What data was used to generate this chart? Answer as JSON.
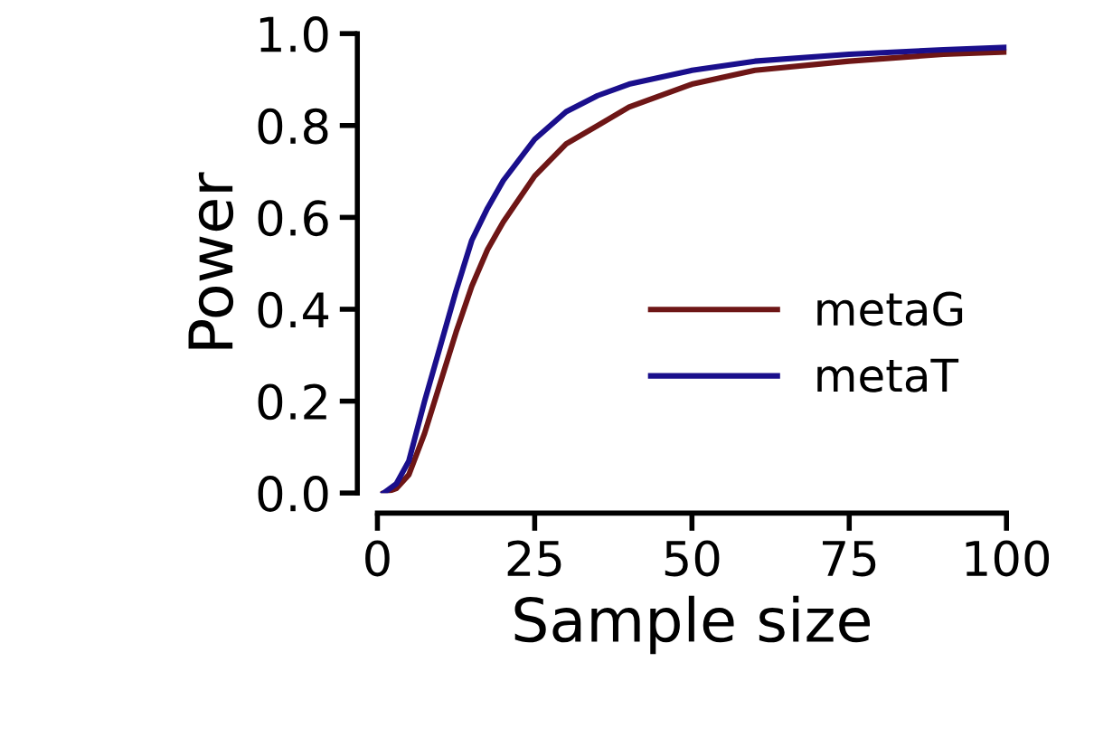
{
  "chart_data": {
    "type": "line",
    "xlabel": "Sample size",
    "ylabel": "Power",
    "xlim": [
      0,
      100
    ],
    "ylim": [
      0,
      1
    ],
    "xticks": [
      0,
      25,
      50,
      75,
      100
    ],
    "yticks": [
      {
        "value": 0,
        "label": "0.0"
      },
      {
        "value": 0.2,
        "label": "0.2"
      },
      {
        "value": 0.4,
        "label": "0.4"
      },
      {
        "value": 0.6,
        "label": "0.6"
      },
      {
        "value": 0.8,
        "label": "0.8"
      },
      {
        "value": 1,
        "label": "1.0"
      }
    ],
    "legend": "right",
    "grid": false,
    "x": [
      1,
      3,
      5,
      7.5,
      10,
      12.5,
      15,
      17.5,
      20,
      25,
      30,
      35,
      40,
      50,
      60,
      75,
      90,
      100
    ],
    "series": [
      {
        "name": "metaG",
        "color": "#6e1616",
        "values": [
          0.0,
          0.01,
          0.04,
          0.13,
          0.24,
          0.35,
          0.45,
          0.53,
          0.59,
          0.69,
          0.76,
          0.8,
          0.84,
          0.89,
          0.92,
          0.94,
          0.955,
          0.96
        ]
      },
      {
        "name": "metaT",
        "color": "#1a0f8c",
        "values": [
          0.0,
          0.02,
          0.07,
          0.2,
          0.32,
          0.44,
          0.55,
          0.62,
          0.68,
          0.77,
          0.83,
          0.865,
          0.89,
          0.92,
          0.94,
          0.955,
          0.965,
          0.97
        ]
      }
    ]
  }
}
